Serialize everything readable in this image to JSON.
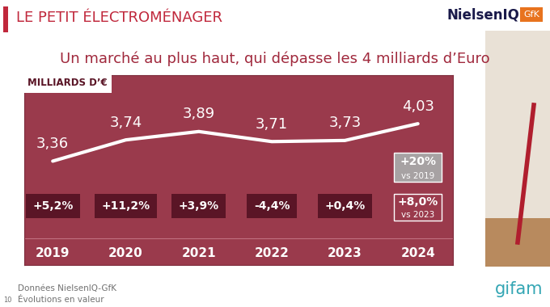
{
  "header": {
    "title": "LE PETIT ÉLECTROMÉNAGER",
    "logos": [
      "NielsenIQ",
      "GfK"
    ]
  },
  "chart_data": {
    "type": "line",
    "title": "Un marché au plus haut, qui dépasse les 4 milliards d’Euro",
    "y_label": "MILLIARDS D’€",
    "categories": [
      "2019",
      "2020",
      "2021",
      "2022",
      "2023",
      "2024"
    ],
    "values": [
      3.36,
      3.74,
      3.89,
      3.71,
      3.73,
      4.03
    ],
    "value_labels": [
      "3,36",
      "3,74",
      "3,89",
      "3,71",
      "3,73",
      "4,03"
    ],
    "color": "#ffffff",
    "data_labels": true,
    "tick_labels": "x",
    "grid": false,
    "ylim": [
      1.5,
      4.9
    ],
    "yticks": [],
    "growth": {
      "values": [
        5.2,
        11.2,
        3.9,
        -4.4,
        0.4,
        8.0
      ],
      "value_labels": [
        "+5,2%",
        "+11,2%",
        "+3,9%",
        "-4,4%",
        "+0,4%",
        "+8,0%"
      ],
      "last_note": "vs 2023"
    },
    "total_growth": {
      "value": 20,
      "label": "+20%",
      "note": "vs 2019"
    }
  },
  "footer": {
    "source": "Données NielsenIQ-GfK",
    "note": "Évolutions en valeur",
    "page": "10",
    "logo": "gifam"
  }
}
